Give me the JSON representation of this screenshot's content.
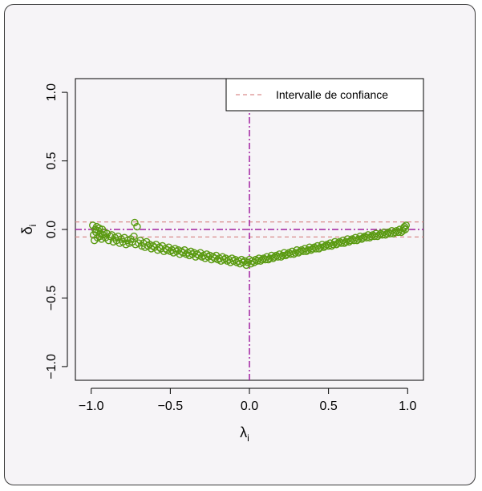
{
  "chart_data": {
    "type": "scatter",
    "xlabel": "λ",
    "xlabel_sub": "i",
    "ylabel": "δ",
    "ylabel_sub": "i",
    "xlim": [
      -1.1,
      1.1
    ],
    "ylim": [
      -1.1,
      1.1
    ],
    "xticks": [
      -1.0,
      -0.5,
      0.0,
      0.5,
      1.0
    ],
    "xtick_labels": [
      "−1.0",
      "−0.5",
      "0.0",
      "0.5",
      "1.0"
    ],
    "yticks": [
      -1.0,
      -0.5,
      0.0,
      0.5,
      1.0
    ],
    "ytick_labels": [
      "−1.0",
      "−0.5",
      "0.0",
      "0.5",
      "1.0"
    ],
    "legend": {
      "label": "Intervalle de confiance",
      "position": "top-right"
    },
    "confidence_interval": [
      -0.055,
      0.055
    ],
    "reference_lines": {
      "horizontal": 0,
      "vertical": 0
    },
    "colors": {
      "points": "#5a9a12",
      "confidence": "#d98c8c",
      "reference": "#a020a0"
    },
    "series": [
      {
        "points": [
          [
            -0.99,
            0.03
          ],
          [
            -0.985,
            -0.04
          ],
          [
            -0.98,
            -0.08
          ],
          [
            -0.975,
            0.0
          ],
          [
            -0.97,
            -0.02
          ],
          [
            -0.965,
            0.02
          ],
          [
            -0.96,
            -0.06
          ],
          [
            -0.955,
            -0.01
          ],
          [
            -0.95,
            0.01
          ],
          [
            -0.945,
            -0.05
          ],
          [
            -0.94,
            -0.03
          ],
          [
            -0.935,
            -0.07
          ],
          [
            -0.93,
            0.0
          ],
          [
            -0.925,
            -0.04
          ],
          [
            -0.92,
            -0.02
          ],
          [
            -0.91,
            -0.06
          ],
          [
            -0.9,
            -0.03
          ],
          [
            -0.89,
            -0.08
          ],
          [
            -0.88,
            -0.05
          ],
          [
            -0.87,
            -0.04
          ],
          [
            -0.86,
            -0.09
          ],
          [
            -0.85,
            -0.06
          ],
          [
            -0.84,
            -0.08
          ],
          [
            -0.83,
            -0.05
          ],
          [
            -0.82,
            -0.1
          ],
          [
            -0.81,
            -0.07
          ],
          [
            -0.8,
            -0.09
          ],
          [
            -0.79,
            -0.06
          ],
          [
            -0.78,
            -0.11
          ],
          [
            -0.77,
            -0.08
          ],
          [
            -0.76,
            -0.1
          ],
          [
            -0.75,
            -0.07
          ],
          [
            -0.74,
            -0.09
          ],
          [
            -0.73,
            -0.05
          ],
          [
            -0.725,
            0.05
          ],
          [
            -0.72,
            -0.11
          ],
          [
            -0.71,
            0.02
          ],
          [
            -0.7,
            -0.1
          ],
          [
            -0.69,
            -0.08
          ],
          [
            -0.68,
            -0.12
          ],
          [
            -0.67,
            -0.1
          ],
          [
            -0.66,
            -0.13
          ],
          [
            -0.65,
            -0.09
          ],
          [
            -0.64,
            -0.12
          ],
          [
            -0.63,
            -0.11
          ],
          [
            -0.62,
            -0.14
          ],
          [
            -0.61,
            -0.12
          ],
          [
            -0.6,
            -0.13
          ],
          [
            -0.59,
            -0.11
          ],
          [
            -0.58,
            -0.15
          ],
          [
            -0.57,
            -0.13
          ],
          [
            -0.56,
            -0.14
          ],
          [
            -0.55,
            -0.12
          ],
          [
            -0.54,
            -0.16
          ],
          [
            -0.53,
            -0.14
          ],
          [
            -0.52,
            -0.15
          ],
          [
            -0.51,
            -0.13
          ],
          [
            -0.5,
            -0.16
          ],
          [
            -0.49,
            -0.15
          ],
          [
            -0.48,
            -0.17
          ],
          [
            -0.47,
            -0.14
          ],
          [
            -0.46,
            -0.16
          ],
          [
            -0.45,
            -0.15
          ],
          [
            -0.44,
            -0.18
          ],
          [
            -0.43,
            -0.16
          ],
          [
            -0.42,
            -0.17
          ],
          [
            -0.41,
            -0.15
          ],
          [
            -0.4,
            -0.18
          ],
          [
            -0.39,
            -0.17
          ],
          [
            -0.38,
            -0.19
          ],
          [
            -0.37,
            -0.16
          ],
          [
            -0.36,
            -0.18
          ],
          [
            -0.35,
            -0.17
          ],
          [
            -0.34,
            -0.2
          ],
          [
            -0.33,
            -0.18
          ],
          [
            -0.32,
            -0.19
          ],
          [
            -0.31,
            -0.17
          ],
          [
            -0.3,
            -0.2
          ],
          [
            -0.29,
            -0.19
          ],
          [
            -0.28,
            -0.21
          ],
          [
            -0.27,
            -0.18
          ],
          [
            -0.26,
            -0.2
          ],
          [
            -0.25,
            -0.19
          ],
          [
            -0.24,
            -0.22
          ],
          [
            -0.23,
            -0.2
          ],
          [
            -0.22,
            -0.21
          ],
          [
            -0.21,
            -0.19
          ],
          [
            -0.2,
            -0.22
          ],
          [
            -0.19,
            -0.21
          ],
          [
            -0.18,
            -0.23
          ],
          [
            -0.17,
            -0.2
          ],
          [
            -0.16,
            -0.22
          ],
          [
            -0.15,
            -0.21
          ],
          [
            -0.14,
            -0.23
          ],
          [
            -0.13,
            -0.22
          ],
          [
            -0.12,
            -0.24
          ],
          [
            -0.11,
            -0.21
          ],
          [
            -0.1,
            -0.23
          ],
          [
            -0.09,
            -0.22
          ],
          [
            -0.08,
            -0.24
          ],
          [
            -0.07,
            -0.23
          ],
          [
            -0.06,
            -0.25
          ],
          [
            -0.05,
            -0.22
          ],
          [
            -0.04,
            -0.24
          ],
          [
            -0.03,
            -0.23
          ],
          [
            -0.02,
            -0.26
          ],
          [
            -0.01,
            -0.24
          ],
          [
            0.0,
            -0.22
          ],
          [
            0.01,
            -0.25
          ],
          [
            0.02,
            -0.23
          ],
          [
            0.03,
            -0.24
          ],
          [
            0.04,
            -0.22
          ],
          [
            0.05,
            -0.23
          ],
          [
            0.06,
            -0.21
          ],
          [
            0.07,
            -0.23
          ],
          [
            0.08,
            -0.22
          ],
          [
            0.09,
            -0.21
          ],
          [
            0.1,
            -0.22
          ],
          [
            0.11,
            -0.2
          ],
          [
            0.12,
            -0.22
          ],
          [
            0.13,
            -0.21
          ],
          [
            0.14,
            -0.19
          ],
          [
            0.15,
            -0.21
          ],
          [
            0.16,
            -0.2
          ],
          [
            0.17,
            -0.19
          ],
          [
            0.18,
            -0.2
          ],
          [
            0.19,
            -0.18
          ],
          [
            0.2,
            -0.2
          ],
          [
            0.21,
            -0.19
          ],
          [
            0.22,
            -0.17
          ],
          [
            0.23,
            -0.19
          ],
          [
            0.24,
            -0.18
          ],
          [
            0.25,
            -0.17
          ],
          [
            0.26,
            -0.18
          ],
          [
            0.27,
            -0.16
          ],
          [
            0.28,
            -0.18
          ],
          [
            0.29,
            -0.17
          ],
          [
            0.3,
            -0.15
          ],
          [
            0.31,
            -0.17
          ],
          [
            0.32,
            -0.16
          ],
          [
            0.33,
            -0.15
          ],
          [
            0.34,
            -0.16
          ],
          [
            0.35,
            -0.14
          ],
          [
            0.36,
            -0.16
          ],
          [
            0.37,
            -0.15
          ],
          [
            0.38,
            -0.13
          ],
          [
            0.39,
            -0.15
          ],
          [
            0.4,
            -0.14
          ],
          [
            0.41,
            -0.13
          ],
          [
            0.42,
            -0.14
          ],
          [
            0.43,
            -0.12
          ],
          [
            0.44,
            -0.14
          ],
          [
            0.45,
            -0.13
          ],
          [
            0.46,
            -0.11
          ],
          [
            0.47,
            -0.13
          ],
          [
            0.48,
            -0.12
          ],
          [
            0.49,
            -0.11
          ],
          [
            0.5,
            -0.12
          ],
          [
            0.51,
            -0.1
          ],
          [
            0.52,
            -0.12
          ],
          [
            0.53,
            -0.11
          ],
          [
            0.54,
            -0.09
          ],
          [
            0.55,
            -0.11
          ],
          [
            0.56,
            -0.1
          ],
          [
            0.57,
            -0.09
          ],
          [
            0.58,
            -0.1
          ],
          [
            0.59,
            -0.08
          ],
          [
            0.6,
            -0.1
          ],
          [
            0.61,
            -0.09
          ],
          [
            0.62,
            -0.07
          ],
          [
            0.63,
            -0.09
          ],
          [
            0.64,
            -0.08
          ],
          [
            0.65,
            -0.07
          ],
          [
            0.66,
            -0.08
          ],
          [
            0.67,
            -0.06
          ],
          [
            0.68,
            -0.08
          ],
          [
            0.69,
            -0.07
          ],
          [
            0.7,
            -0.05
          ],
          [
            0.71,
            -0.07
          ],
          [
            0.72,
            -0.06
          ],
          [
            0.73,
            -0.05
          ],
          [
            0.74,
            -0.06
          ],
          [
            0.75,
            -0.04
          ],
          [
            0.76,
            -0.06
          ],
          [
            0.77,
            -0.05
          ],
          [
            0.78,
            -0.04
          ],
          [
            0.79,
            -0.05
          ],
          [
            0.8,
            -0.03
          ],
          [
            0.81,
            -0.05
          ],
          [
            0.82,
            -0.04
          ],
          [
            0.83,
            -0.03
          ],
          [
            0.84,
            -0.04
          ],
          [
            0.85,
            -0.02
          ],
          [
            0.86,
            -0.04
          ],
          [
            0.87,
            -0.03
          ],
          [
            0.88,
            -0.02
          ],
          [
            0.89,
            -0.03
          ],
          [
            0.9,
            -0.01
          ],
          [
            0.91,
            -0.03
          ],
          [
            0.92,
            -0.02
          ],
          [
            0.93,
            -0.01
          ],
          [
            0.94,
            -0.02
          ],
          [
            0.95,
            0.0
          ],
          [
            0.96,
            -0.02
          ],
          [
            0.97,
            -0.01
          ],
          [
            0.975,
            0.01
          ],
          [
            0.98,
            0.02
          ],
          [
            0.985,
            0.0
          ],
          [
            0.99,
            0.03
          ]
        ]
      }
    ]
  }
}
